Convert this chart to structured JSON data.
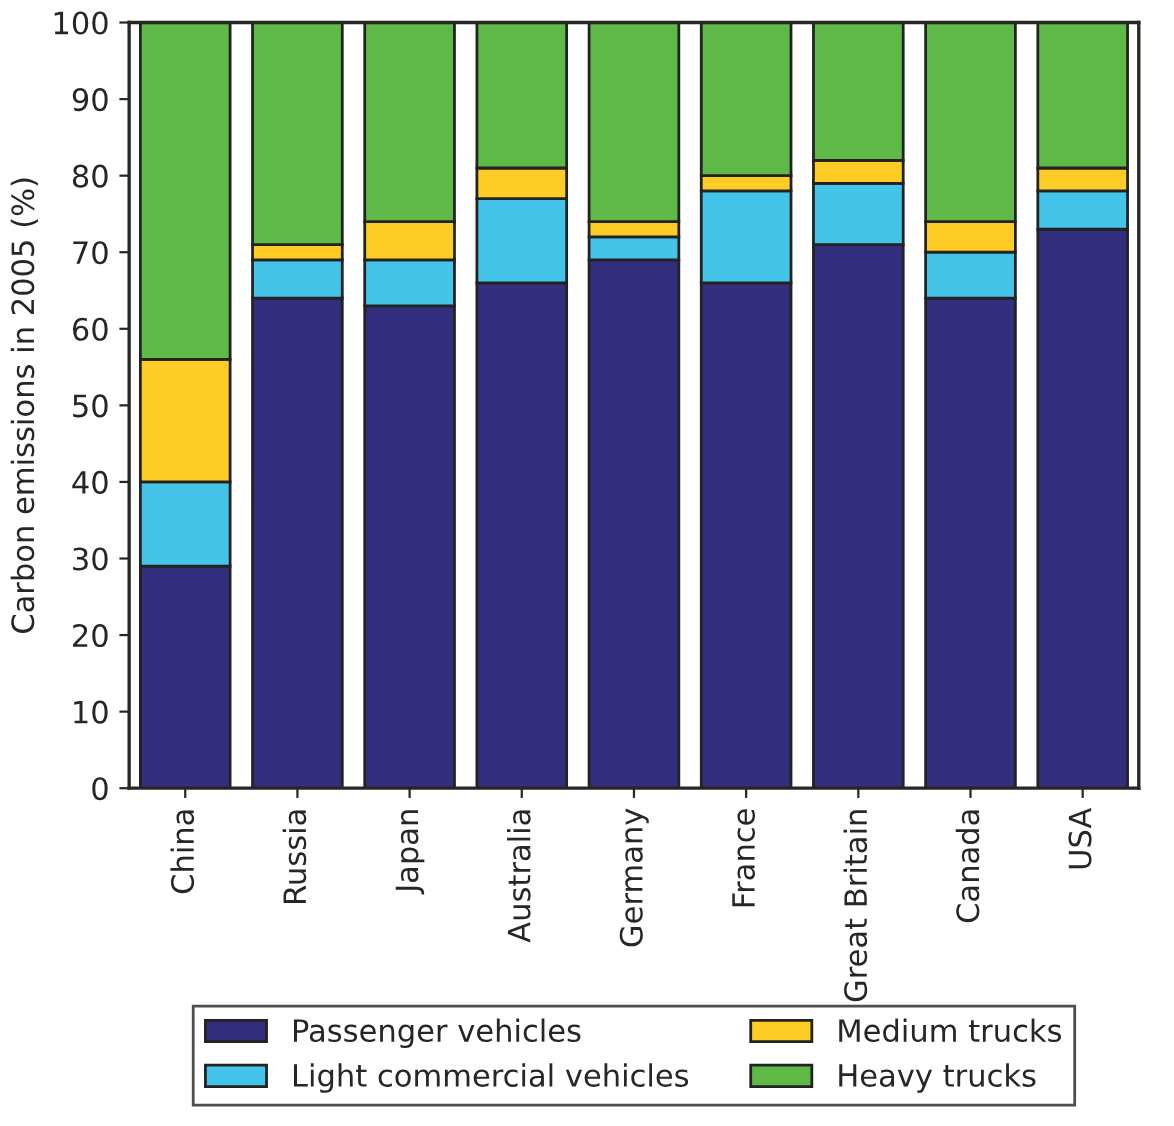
{
  "chart_data": {
    "type": "bar",
    "stacked": true,
    "ylabel": "Carbon emissions in 2005 (%)",
    "categories": [
      "China",
      "Russia",
      "Japan",
      "Australia",
      "Germany",
      "France",
      "Great Britain",
      "Canada",
      "USA"
    ],
    "series": [
      {
        "name": "Passenger vehicles",
        "color": "#332e7e",
        "values": [
          29,
          64,
          63,
          66,
          69,
          66,
          71,
          64,
          73
        ]
      },
      {
        "name": "Light commercial vehicles",
        "color": "#45c4e9",
        "values": [
          11,
          5,
          6,
          11,
          3,
          12,
          8,
          6,
          5
        ]
      },
      {
        "name": "Medium trucks",
        "color": "#fdcd26",
        "values": [
          16,
          2,
          5,
          4,
          2,
          2,
          3,
          4,
          3
        ]
      },
      {
        "name": "Heavy trucks",
        "color": "#5fb947",
        "values": [
          44,
          29,
          26,
          19,
          26,
          20,
          18,
          26,
          19
        ]
      }
    ],
    "ylim": [
      0,
      100
    ],
    "yticks": [
      0,
      10,
      20,
      30,
      40,
      50,
      60,
      70,
      80,
      90,
      100
    ],
    "grid": false,
    "legend": "bottom"
  }
}
